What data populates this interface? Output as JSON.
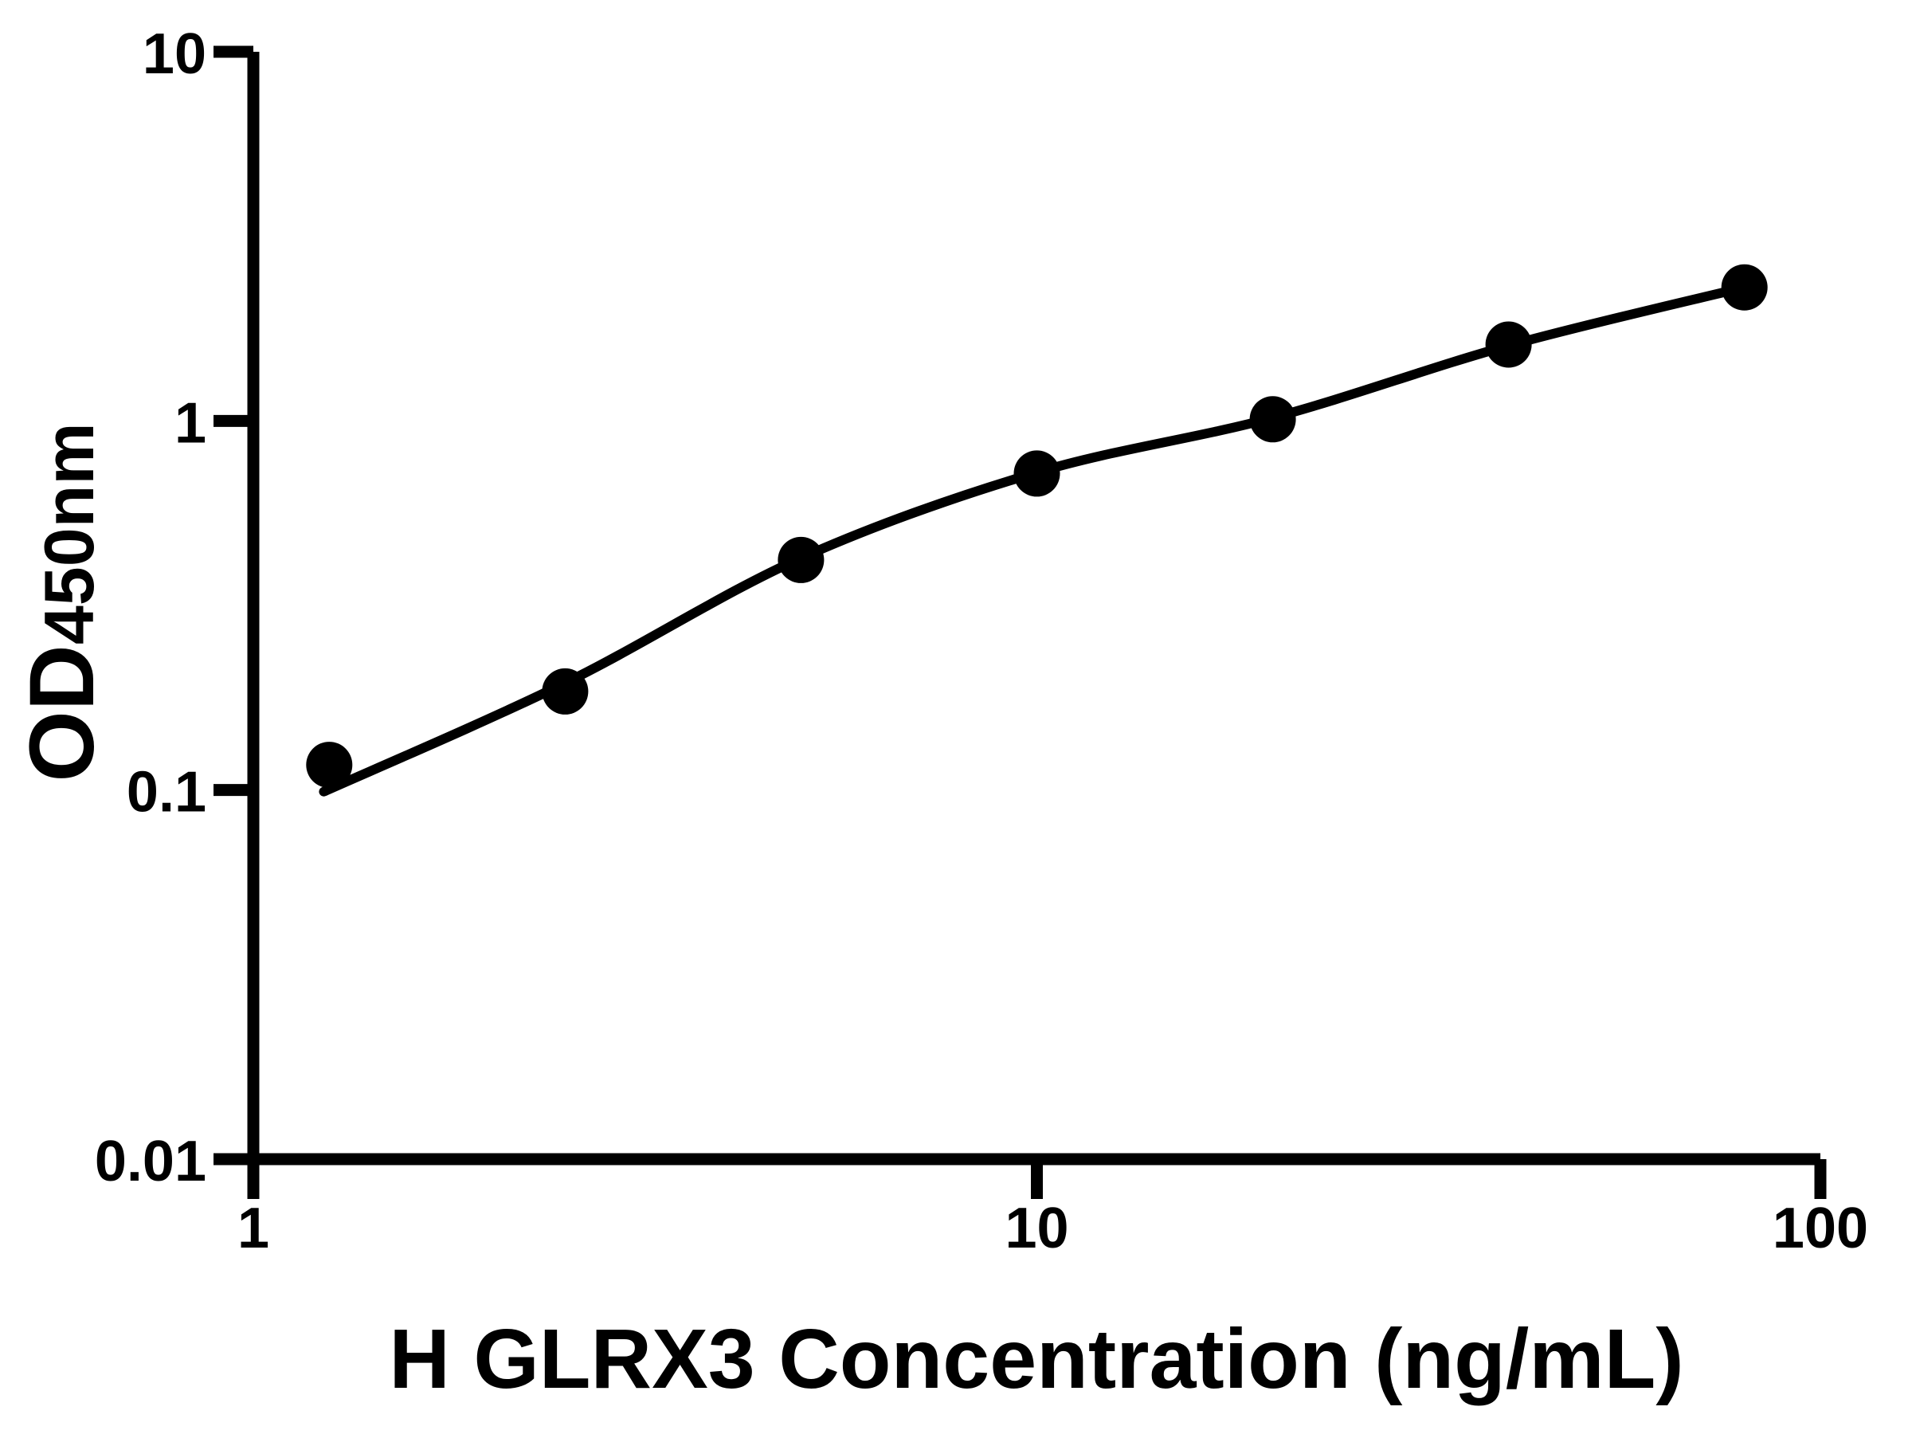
{
  "figure": {
    "background": "#ffffff",
    "ink": "#000000"
  },
  "chart_data": {
    "type": "scatter",
    "title": "",
    "xlabel": "H GLRX3 Concentration (ng/mL)",
    "ylabel": "OD450nm",
    "ylabel_main": "OD",
    "ylabel_sub": "450nm",
    "x_scale": "log10",
    "y_scale": "log10",
    "xlim": [
      1,
      100
    ],
    "ylim": [
      0.01,
      10
    ],
    "grid": false,
    "legend": "none",
    "x_ticks": [
      {
        "value": 1,
        "label": "1"
      },
      {
        "value": 10,
        "label": "10"
      },
      {
        "value": 100,
        "label": "100"
      }
    ],
    "y_ticks": [
      {
        "value": 0.01,
        "label": "0.01"
      },
      {
        "value": 0.1,
        "label": "0.1"
      },
      {
        "value": 1,
        "label": "1"
      },
      {
        "value": 10,
        "label": "10"
      }
    ],
    "series": [
      {
        "name": "standard-points",
        "type": "scatter",
        "marker": "circle",
        "color": "#000000",
        "points": [
          {
            "x": 1.25,
            "y": 0.117
          },
          {
            "x": 2.5,
            "y": 0.185
          },
          {
            "x": 5,
            "y": 0.42
          },
          {
            "x": 10,
            "y": 0.72
          },
          {
            "x": 20,
            "y": 1.01
          },
          {
            "x": 40,
            "y": 1.61
          },
          {
            "x": 80,
            "y": 2.3
          }
        ]
      },
      {
        "name": "fit-curve",
        "type": "line",
        "color": "#000000",
        "points": [
          {
            "x": 1.23,
            "y": 0.099
          },
          {
            "x": 2.5,
            "y": 0.195
          },
          {
            "x": 5,
            "y": 0.425
          },
          {
            "x": 10,
            "y": 0.725
          },
          {
            "x": 20,
            "y": 1.02
          },
          {
            "x": 40,
            "y": 1.6
          },
          {
            "x": 80,
            "y": 2.3
          }
        ]
      }
    ]
  }
}
